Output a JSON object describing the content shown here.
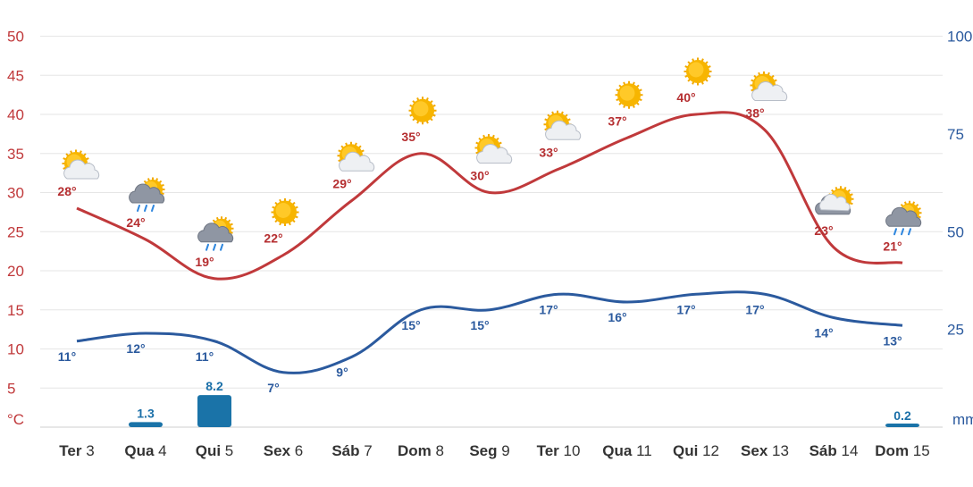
{
  "chart_data": {
    "type": "line",
    "categories": [
      {
        "day": "Ter",
        "num": "3"
      },
      {
        "day": "Qua",
        "num": "4"
      },
      {
        "day": "Qui",
        "num": "5"
      },
      {
        "day": "Sex",
        "num": "6"
      },
      {
        "day": "Sáb",
        "num": "7"
      },
      {
        "day": "Dom",
        "num": "8"
      },
      {
        "day": "Seg",
        "num": "9"
      },
      {
        "day": "Ter",
        "num": "10"
      },
      {
        "day": "Qua",
        "num": "11"
      },
      {
        "day": "Qui",
        "num": "12"
      },
      {
        "day": "Sex",
        "num": "13"
      },
      {
        "day": "Sáb",
        "num": "14"
      },
      {
        "day": "Dom",
        "num": "15"
      }
    ],
    "series": [
      {
        "values": [
          28,
          24,
          19,
          22,
          29,
          35,
          30,
          33,
          37,
          40,
          38,
          23,
          21
        ],
        "labels": [
          "28°",
          "24°",
          "19°",
          "22°",
          "29°",
          "35°",
          "30°",
          "33°",
          "37°",
          "40°",
          "38°",
          "23°",
          "21°"
        ],
        "color": "#c0393b",
        "axis": "left"
      },
      {
        "values": [
          11,
          12,
          11,
          7,
          9,
          15,
          15,
          17,
          16,
          17,
          17,
          14,
          13
        ],
        "labels": [
          "11°",
          "12°",
          "11°",
          "7°",
          "9°",
          "15°",
          "15°",
          "17°",
          "16°",
          "17°",
          "17°",
          "14°",
          "13°"
        ],
        "color": "#2b5a9e",
        "axis": "left"
      },
      {
        "type": "bar",
        "values": [
          0,
          1.3,
          8.2,
          0,
          0,
          0,
          0,
          0,
          0,
          0,
          0,
          0,
          0.2
        ],
        "labels": [
          "",
          "1.3",
          "8.2",
          "",
          "",
          "",
          "",
          "",
          "",
          "",
          "",
          "",
          "0.2"
        ],
        "color": "#1a73a8",
        "axis": "right"
      }
    ],
    "icons": [
      "sun-cloud-icon",
      "rain-cloud-sun-icon",
      "rain-cloud-sun-icon",
      "sun-icon",
      "sun-cloud-icon",
      "sun-icon",
      "sun-cloud-icon",
      "sun-cloud-icon",
      "sun-icon",
      "sun-icon",
      "sun-cloud-icon",
      "cloud-sun-icon",
      "rain-cloud-sun-icon"
    ],
    "y_left": {
      "ticks": [
        "5",
        "10",
        "15",
        "20",
        "25",
        "30",
        "35",
        "40",
        "45",
        "50"
      ],
      "unit": "°C",
      "ylim": [
        0,
        50
      ],
      "color": "#c0393b"
    },
    "y_right": {
      "ticks": [
        "25",
        "50",
        "75",
        "100"
      ],
      "unit": "mm",
      "ylim": [
        0,
        100
      ],
      "color": "#2b5a9e"
    },
    "grid": true,
    "title": "",
    "xlabel": ""
  }
}
